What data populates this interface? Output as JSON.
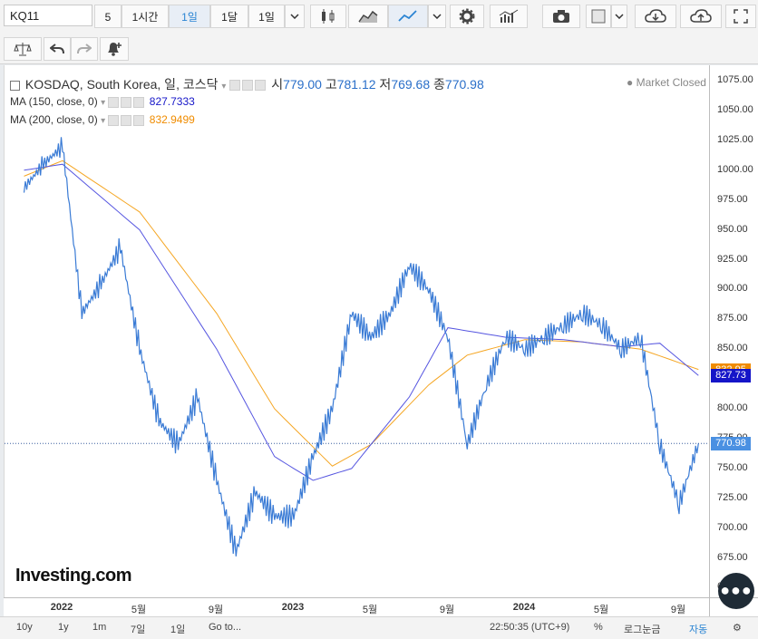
{
  "toolbar": {
    "symbol": "KQ11",
    "intervals": [
      "5",
      "1시간",
      "1일",
      "1달",
      "1일"
    ],
    "selected_interval": "1일"
  },
  "legend": {
    "title": "KOSDAQ, South Korea, 일, 코스닥",
    "open_label": "시",
    "open": "779.00",
    "high_label": "고",
    "high": "781.12",
    "low_label": "저",
    "low": "769.68",
    "close_label": "종",
    "close": "770.98",
    "status": "Market Closed"
  },
  "studies": [
    {
      "label": "MA (150, close, 0)",
      "value": "827.7333",
      "color": "#3d3ddb"
    },
    {
      "label": "MA (200, close, 0)",
      "value": "832.9499",
      "color": "#f08c00"
    }
  ],
  "price_tags": {
    "ma200": "832.95",
    "ma150": "827.73",
    "last": "770.98"
  },
  "colors": {
    "price_line": "#3a7bd5",
    "ma150": "#5555e0",
    "ma200": "#f5a623",
    "tag_ma150": "#1515c8",
    "tag_ma200": "#f08c00",
    "tag_last": "#4a90e2"
  },
  "bottom_bar": {
    "ranges": [
      "10y",
      "1y",
      "1m",
      "7일",
      "1일"
    ],
    "goto": "Go to...",
    "time": "22:50:35 (UTC+9)",
    "percent": "%",
    "log": "로그눈금",
    "auto": "자동"
  },
  "watermark": "Investing.com",
  "chart_data": {
    "type": "line",
    "title": "KOSDAQ, South Korea, 일, 코스닥",
    "ylim": [
      642,
      1088
    ],
    "yticks": [
      650,
      675,
      700,
      725,
      750,
      775,
      800,
      825,
      850,
      875,
      900,
      925,
      950,
      975,
      1000,
      1025,
      1050,
      1075
    ],
    "xticks": [
      "2022",
      "5월",
      "9월",
      "2023",
      "5월",
      "9월",
      "2024",
      "5월",
      "9월"
    ],
    "series": [
      {
        "name": "KOSDAQ",
        "x": [
          "2021-11",
          "2021-12",
          "2022-01",
          "2022-02",
          "2022-03",
          "2022-04",
          "2022-05",
          "2022-06",
          "2022-07",
          "2022-08",
          "2022-09",
          "2022-10",
          "2022-11",
          "2022-12",
          "2023-01",
          "2023-02",
          "2023-03",
          "2023-04",
          "2023-05",
          "2023-06",
          "2023-07",
          "2023-08",
          "2023-09",
          "2023-10",
          "2023-11",
          "2023-12",
          "2024-01",
          "2024-02",
          "2024-03",
          "2024-04",
          "2024-05",
          "2024-06",
          "2024-07",
          "2024-08",
          "2024-09",
          "2024-10"
        ],
        "values": [
          985,
          1005,
          1020,
          880,
          905,
          935,
          850,
          790,
          770,
          810,
          740,
          680,
          730,
          710,
          710,
          760,
          800,
          880,
          860,
          880,
          920,
          900,
          860,
          770,
          820,
          860,
          850,
          860,
          870,
          880,
          870,
          850,
          860,
          770,
          720,
          771
        ]
      },
      {
        "name": "MA (150, close, 0)",
        "x": [
          "2021-11",
          "2022-01",
          "2022-05",
          "2022-09",
          "2022-12",
          "2023-02",
          "2023-04",
          "2023-07",
          "2023-09",
          "2023-12",
          "2024-03",
          "2024-06",
          "2024-08",
          "2024-10"
        ],
        "values": [
          1000,
          1005,
          950,
          850,
          760,
          740,
          750,
          810,
          868,
          860,
          858,
          852,
          855,
          828
        ]
      },
      {
        "name": "MA (200, close, 0)",
        "x": [
          "2021-11",
          "2022-01",
          "2022-05",
          "2022-09",
          "2022-12",
          "2023-03",
          "2023-05",
          "2023-08",
          "2023-10",
          "2024-01",
          "2024-04",
          "2024-07",
          "2024-10"
        ],
        "values": [
          995,
          1008,
          965,
          880,
          800,
          752,
          770,
          820,
          845,
          858,
          856,
          850,
          833
        ]
      }
    ]
  }
}
